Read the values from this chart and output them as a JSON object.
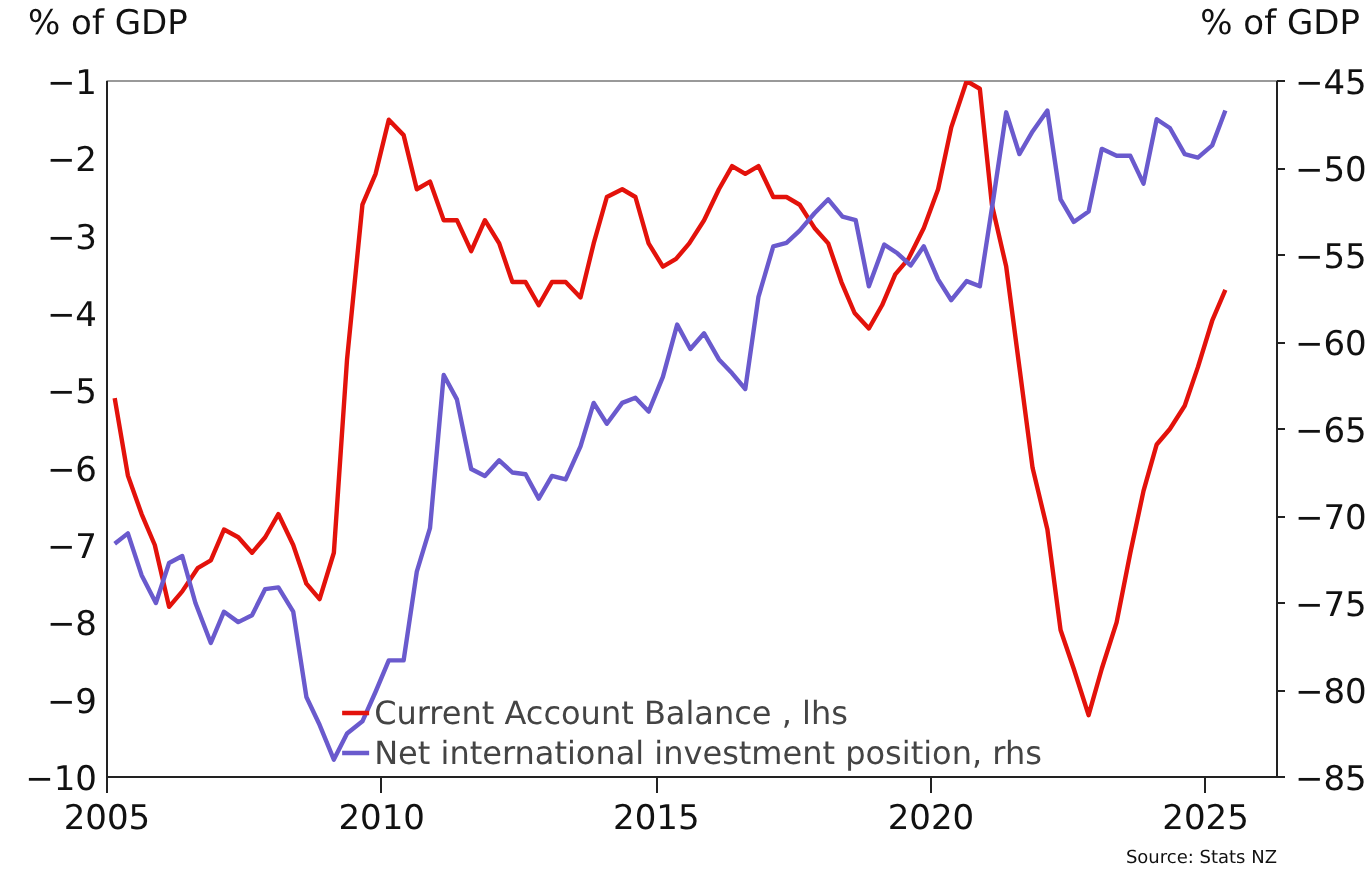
{
  "chart_data": {
    "type": "line",
    "ylabel": "% of GDP",
    "y2label": "% of GDP",
    "xlim": [
      2005,
      2026.3
    ],
    "xticks": [
      2005,
      2010,
      2015,
      2020,
      2025
    ],
    "ylim": [
      -10,
      -1
    ],
    "yticks": [
      -10,
      -9,
      -8,
      -7,
      -6,
      -5,
      -4,
      -3,
      -2,
      -1
    ],
    "y2lim": [
      -85,
      -45
    ],
    "y2ticks": [
      -85,
      -80,
      -75,
      -70,
      -65,
      -60,
      -55,
      -50,
      -45
    ],
    "grid": false,
    "legend": "bottom",
    "annotations": [
      "Source: Stats NZ"
    ],
    "series": [
      {
        "name": "Current Account Balance , lhs",
        "color": "#e3120b",
        "axis": "y",
        "x": [
          2005.14,
          2005.38,
          2005.63,
          2005.87,
          2006.13,
          2006.37,
          2006.65,
          2006.89,
          2007.13,
          2007.39,
          2007.64,
          2007.88,
          2008.12,
          2008.39,
          2008.63,
          2008.87,
          2009.13,
          2009.37,
          2009.65,
          2009.89,
          2010.13,
          2010.4,
          2010.64,
          2010.88,
          2011.13,
          2011.37,
          2011.63,
          2011.88,
          2012.14,
          2012.38,
          2012.62,
          2012.86,
          2013.1,
          2013.35,
          2013.62,
          2013.86,
          2014.1,
          2014.38,
          2014.62,
          2014.86,
          2015.12,
          2015.36,
          2015.6,
          2015.87,
          2016.14,
          2016.38,
          2016.62,
          2016.86,
          2017.13,
          2017.37,
          2017.61,
          2017.88,
          2018.13,
          2018.37,
          2018.61,
          2018.87,
          2019.11,
          2019.35,
          2019.59,
          2019.87,
          2020.13,
          2020.37,
          2020.65,
          2020.89,
          2021.11,
          2021.37,
          2021.61,
          2021.85,
          2022.12,
          2022.36,
          2022.6,
          2022.87,
          2023.11,
          2023.38,
          2023.63,
          2023.87,
          2024.11,
          2024.35,
          2024.62,
          2024.86,
          2025.12,
          2025.36
        ],
        "values": [
          -5.1,
          -6.1,
          -6.6,
          -7.0,
          -7.8,
          -7.6,
          -7.3,
          -7.2,
          -6.8,
          -6.9,
          -7.1,
          -6.9,
          -6.6,
          -7.0,
          -7.5,
          -7.7,
          -7.1,
          -4.6,
          -2.6,
          -2.2,
          -1.5,
          -1.7,
          -2.4,
          -2.3,
          -2.8,
          -2.8,
          -3.2,
          -2.8,
          -3.1,
          -3.6,
          -3.6,
          -3.9,
          -3.6,
          -3.6,
          -3.8,
          -3.1,
          -2.5,
          -2.4,
          -2.5,
          -3.1,
          -3.4,
          -3.3,
          -3.1,
          -2.8,
          -2.4,
          -2.1,
          -2.2,
          -2.1,
          -2.5,
          -2.5,
          -2.6,
          -2.9,
          -3.1,
          -3.6,
          -4.0,
          -4.2,
          -3.9,
          -3.5,
          -3.3,
          -2.9,
          -2.4,
          -1.6,
          -1.0,
          -1.1,
          -2.6,
          -3.4,
          -4.7,
          -6.0,
          -6.8,
          -8.1,
          -8.6,
          -9.2,
          -8.6,
          -8.0,
          -7.1,
          -6.3,
          -5.7,
          -5.5,
          -5.2,
          -4.7,
          -4.1,
          -3.7
        ]
      },
      {
        "name": "Net international investment position, rhs",
        "color": "#6a5acd",
        "axis": "y2",
        "x": [
          2005.14,
          2005.38,
          2005.63,
          2005.89,
          2006.13,
          2006.37,
          2006.61,
          2006.89,
          2007.13,
          2007.39,
          2007.64,
          2007.88,
          2008.12,
          2008.39,
          2008.63,
          2008.87,
          2009.13,
          2009.37,
          2009.65,
          2009.89,
          2010.13,
          2010.4,
          2010.64,
          2010.88,
          2011.13,
          2011.37,
          2011.63,
          2011.88,
          2012.14,
          2012.38,
          2012.62,
          2012.86,
          2013.1,
          2013.35,
          2013.62,
          2013.86,
          2014.1,
          2014.38,
          2014.62,
          2014.86,
          2015.12,
          2015.38,
          2015.62,
          2015.87,
          2016.14,
          2016.38,
          2016.62,
          2016.86,
          2017.13,
          2017.37,
          2017.61,
          2017.88,
          2018.13,
          2018.39,
          2018.63,
          2018.87,
          2019.15,
          2019.39,
          2019.63,
          2019.87,
          2020.13,
          2020.37,
          2020.65,
          2020.89,
          2021.13,
          2021.37,
          2021.61,
          2021.85,
          2022.12,
          2022.36,
          2022.6,
          2022.87,
          2023.11,
          2023.38,
          2023.63,
          2023.87,
          2024.11,
          2024.35,
          2024.62,
          2024.86,
          2025.12,
          2025.36
        ],
        "values": [
          -71.6,
          -71.0,
          -73.4,
          -75.0,
          -72.7,
          -72.3,
          -75.0,
          -77.3,
          -75.5,
          -76.1,
          -75.7,
          -74.2,
          -74.1,
          -75.5,
          -80.4,
          -82.0,
          -84.0,
          -82.5,
          -81.8,
          -80.1,
          -78.3,
          -78.3,
          -73.2,
          -70.7,
          -61.9,
          -63.3,
          -67.3,
          -67.7,
          -66.8,
          -67.5,
          -67.6,
          -69.0,
          -67.7,
          -67.9,
          -66.0,
          -63.5,
          -64.7,
          -63.5,
          -63.2,
          -64.0,
          -62.0,
          -59.0,
          -60.4,
          -59.5,
          -61.0,
          -61.8,
          -62.7,
          -57.4,
          -54.5,
          -54.3,
          -53.6,
          -52.6,
          -51.8,
          -52.8,
          -53.0,
          -56.8,
          -54.4,
          -54.9,
          -55.6,
          -54.5,
          -56.4,
          -57.6,
          -56.5,
          -56.8,
          -51.9,
          -46.8,
          -49.2,
          -47.9,
          -46.7,
          -51.8,
          -53.1,
          -52.5,
          -48.9,
          -49.3,
          -49.3,
          -50.9,
          -47.2,
          -47.7,
          -49.2,
          -49.4,
          -48.7,
          -46.7
        ]
      }
    ]
  }
}
